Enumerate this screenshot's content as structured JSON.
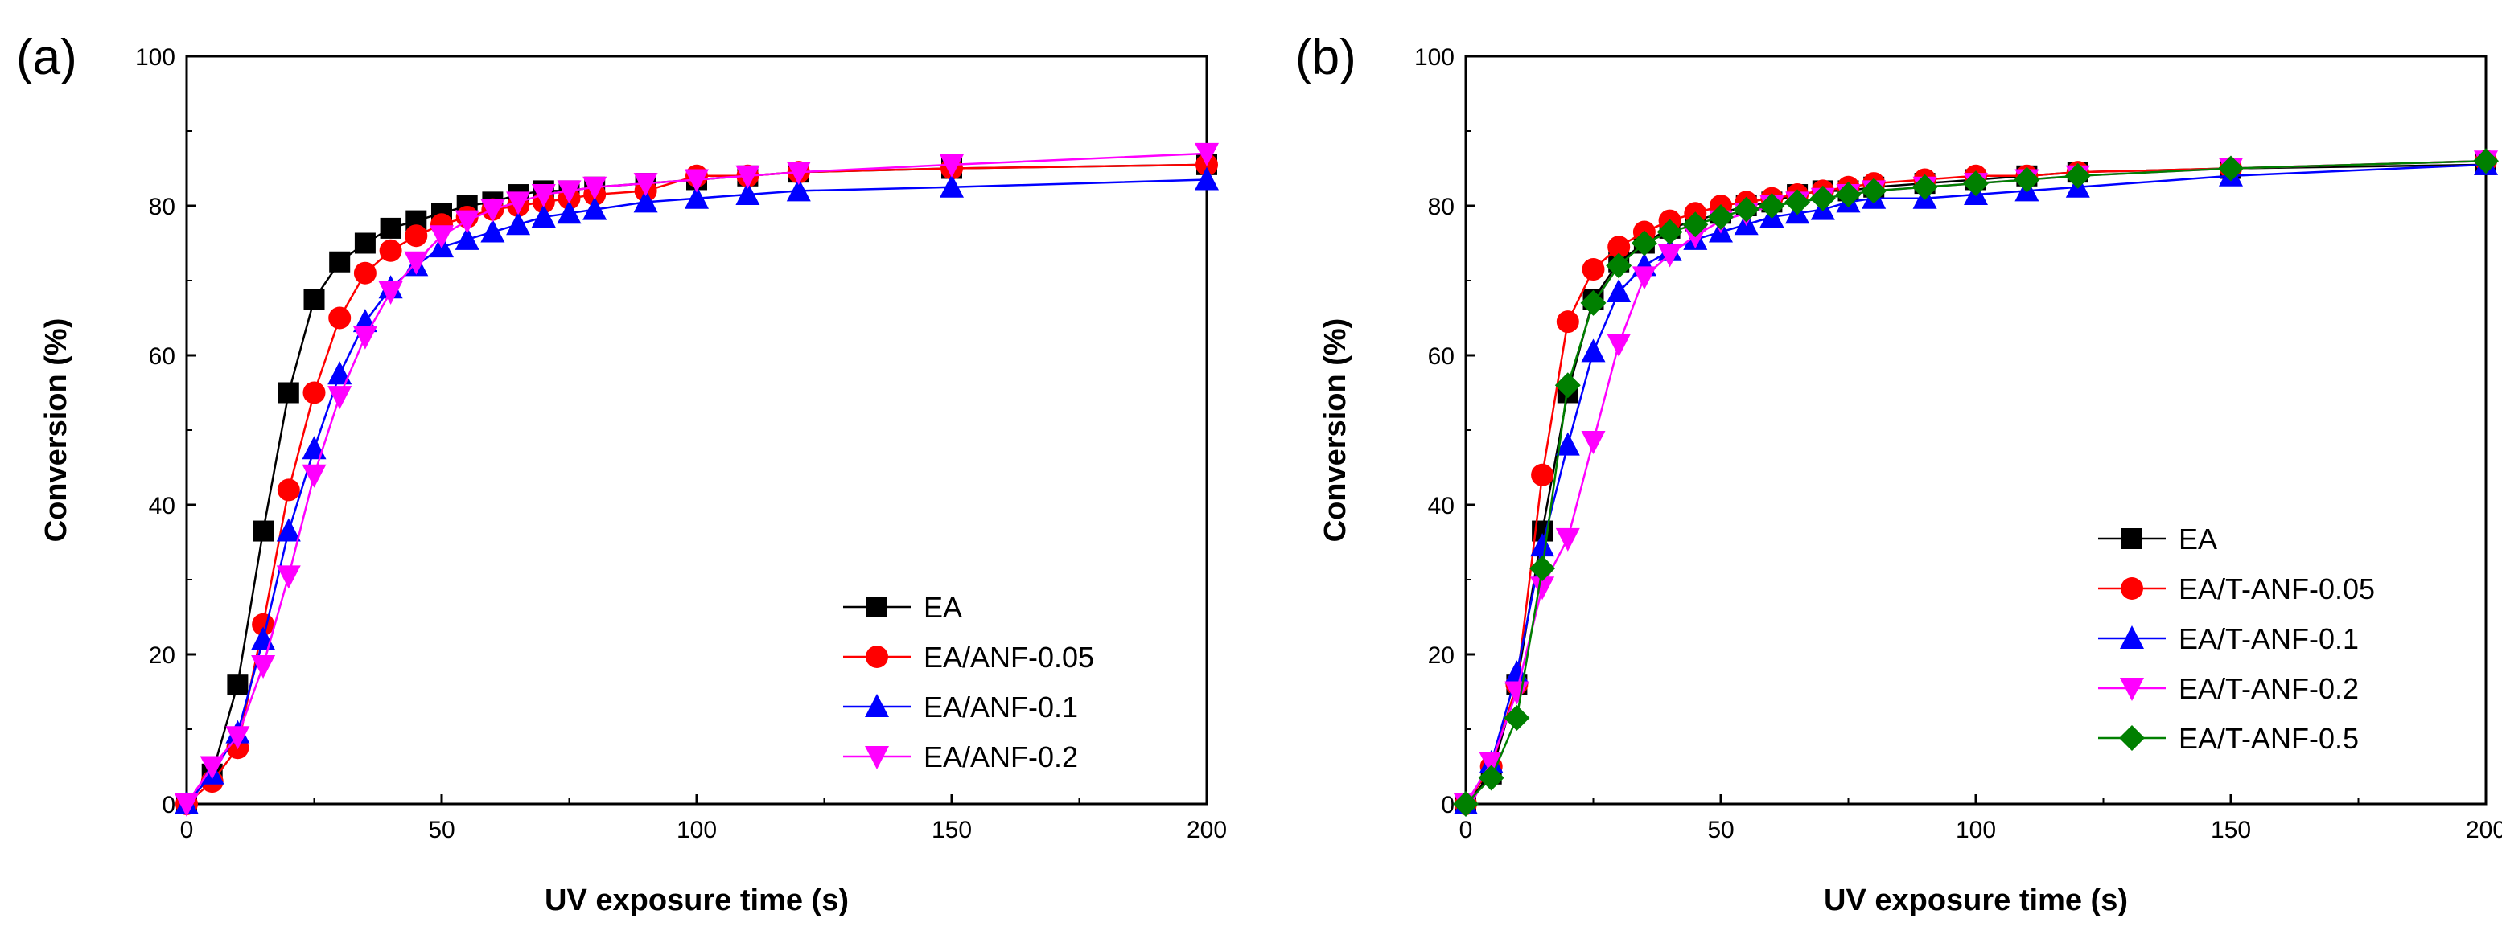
{
  "chart_data": [
    {
      "type": "line",
      "panel_label": "(a)",
      "xlabel": "UV exposure time (s)",
      "ylabel": "Conversion (%)",
      "xlim": [
        0,
        200
      ],
      "ylim": [
        0,
        100
      ],
      "xticks": [
        0,
        50,
        100,
        150,
        200
      ],
      "yticks": [
        0,
        20,
        40,
        60,
        80,
        100
      ],
      "legend_position": "bottom-right",
      "series": [
        {
          "name": "EA",
          "color": "#000000",
          "marker": "square",
          "x": [
            0,
            5,
            10,
            15,
            20,
            25,
            30,
            35,
            40,
            45,
            50,
            55,
            60,
            65,
            70,
            75,
            80,
            90,
            100,
            110,
            120,
            150,
            200
          ],
          "y": [
            0,
            4,
            16,
            36.5,
            55,
            67.5,
            72.5,
            75,
            77,
            78,
            79,
            80,
            80.5,
            81.5,
            82,
            82,
            82.5,
            83,
            83.5,
            84,
            84.5,
            85,
            85.5
          ]
        },
        {
          "name": "EA/ANF-0.05",
          "color": "#ff0000",
          "marker": "circle",
          "x": [
            0,
            5,
            10,
            15,
            20,
            25,
            30,
            35,
            40,
            45,
            50,
            55,
            60,
            65,
            70,
            75,
            80,
            90,
            100,
            110,
            120,
            150,
            200
          ],
          "y": [
            0,
            3,
            7.5,
            24,
            42,
            55,
            65,
            71,
            74,
            76,
            77.5,
            78.5,
            79.5,
            80,
            80.5,
            81,
            81.5,
            82,
            84,
            84,
            84.5,
            85,
            85.5
          ]
        },
        {
          "name": "EA/ANF-0.1",
          "color": "#0000ff",
          "marker": "triangle-up",
          "x": [
            0,
            5,
            10,
            15,
            20,
            25,
            30,
            35,
            40,
            45,
            50,
            55,
            60,
            65,
            70,
            75,
            80,
            90,
            100,
            110,
            120,
            150,
            200
          ],
          "y": [
            0,
            4,
            9.5,
            22,
            36.5,
            47.5,
            57.5,
            64.5,
            69,
            72,
            74.5,
            75.5,
            76.5,
            77.5,
            78.5,
            79,
            79.5,
            80.5,
            81,
            81.5,
            82,
            82.5,
            83.5
          ]
        },
        {
          "name": "EA/ANF-0.2",
          "color": "#ff00ff",
          "marker": "triangle-down",
          "x": [
            0,
            5,
            10,
            15,
            20,
            25,
            30,
            35,
            40,
            45,
            50,
            55,
            60,
            65,
            70,
            75,
            80,
            90,
            100,
            110,
            120,
            150,
            200
          ],
          "y": [
            0,
            5,
            9,
            18.5,
            30.5,
            44,
            54.5,
            62.5,
            68.5,
            72.5,
            76,
            78,
            79.5,
            80.5,
            81.5,
            82,
            82.5,
            83,
            83.5,
            84,
            84.5,
            85.5,
            87
          ]
        }
      ]
    },
    {
      "type": "line",
      "panel_label": "(b)",
      "xlabel": "UV exposure time (s)",
      "ylabel": "Conversion (%)",
      "xlim": [
        0,
        200
      ],
      "ylim": [
        0,
        100
      ],
      "xticks": [
        0,
        50,
        100,
        150,
        200
      ],
      "yticks": [
        0,
        20,
        40,
        60,
        80,
        100
      ],
      "legend_position": "bottom-right",
      "series": [
        {
          "name": "EA",
          "color": "#000000",
          "marker": "square",
          "x": [
            0,
            5,
            10,
            15,
            20,
            25,
            30,
            35,
            40,
            45,
            50,
            55,
            60,
            65,
            70,
            75,
            80,
            90,
            100,
            110,
            120,
            150,
            200
          ],
          "y": [
            0,
            4,
            16,
            36.5,
            55,
            67.5,
            72.5,
            75,
            77,
            78,
            79,
            80,
            80.5,
            81.5,
            82,
            82,
            82.5,
            83,
            83.5,
            84,
            84.5,
            85,
            85.5
          ]
        },
        {
          "name": "EA/T-ANF-0.05",
          "color": "#ff0000",
          "marker": "circle",
          "x": [
            0,
            5,
            10,
            15,
            20,
            25,
            30,
            35,
            40,
            45,
            50,
            55,
            60,
            65,
            70,
            75,
            80,
            90,
            100,
            110,
            120,
            150,
            200
          ],
          "y": [
            0,
            5,
            16,
            44,
            64.5,
            71.5,
            74.5,
            76.5,
            78,
            79,
            80,
            80.5,
            81,
            81.5,
            82,
            82.5,
            83,
            83.5,
            84,
            84,
            84.5,
            85,
            86
          ]
        },
        {
          "name": "EA/T-ANF-0.1",
          "color": "#0000ff",
          "marker": "triangle-up",
          "x": [
            0,
            5,
            10,
            15,
            20,
            25,
            30,
            35,
            40,
            45,
            50,
            55,
            60,
            65,
            70,
            75,
            80,
            90,
            100,
            110,
            120,
            150,
            200
          ],
          "y": [
            0,
            5.5,
            17.5,
            34.5,
            48,
            60.5,
            68.5,
            72,
            74,
            75.5,
            76.5,
            77.5,
            78.5,
            79,
            79.5,
            80.5,
            81,
            81,
            81.5,
            82,
            82.5,
            84,
            85.5
          ]
        },
        {
          "name": "EA/T-ANF-0.2",
          "color": "#ff00ff",
          "marker": "triangle-down",
          "x": [
            0,
            5,
            10,
            15,
            20,
            25,
            30,
            35,
            40,
            45,
            50,
            55,
            60,
            65,
            70,
            75,
            80,
            90,
            100,
            110,
            120,
            150,
            200
          ],
          "y": [
            0,
            5.5,
            15,
            29,
            35.5,
            48.5,
            61.5,
            70.5,
            73.5,
            76,
            78,
            79,
            80,
            80.5,
            81,
            81.5,
            82,
            82.5,
            83,
            83.5,
            84,
            85,
            86
          ]
        },
        {
          "name": "EA/T-ANF-0.5",
          "color": "#008000",
          "marker": "diamond",
          "x": [
            0,
            5,
            10,
            15,
            20,
            25,
            30,
            35,
            40,
            45,
            50,
            55,
            60,
            65,
            70,
            75,
            80,
            90,
            100,
            110,
            120,
            150,
            200
          ],
          "y": [
            0,
            3.5,
            11.5,
            31.5,
            56,
            67,
            72,
            75,
            76.5,
            77.5,
            78.5,
            79.5,
            80,
            80.5,
            81,
            81.5,
            82,
            82.5,
            83,
            83.5,
            84,
            85,
            86
          ]
        }
      ]
    }
  ]
}
